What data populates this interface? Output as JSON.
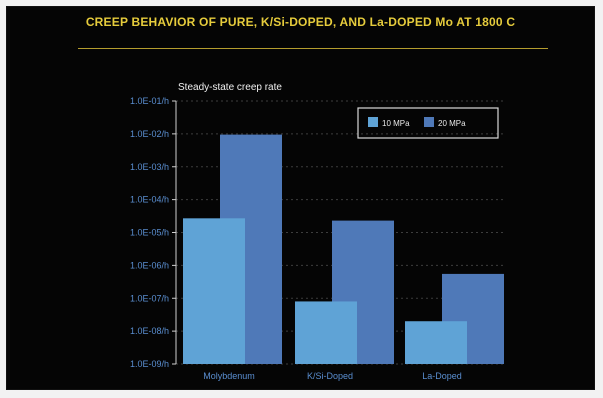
{
  "header": {
    "title": "CREEP BEHAVIOR OF PURE, K/Si-DOPED, AND La-DOPED Mo AT 1800 C"
  },
  "chart_data": {
    "type": "bar",
    "title": "Steady-state creep rate",
    "categories": [
      "Molybdenum",
      "K/Si-Doped",
      "La-Doped"
    ],
    "series": [
      {
        "name": "10 MPa",
        "values": [
          2.7e-05,
          8e-08,
          2e-08
        ],
        "color": "#5fa3d6"
      },
      {
        "name": "20 MPa",
        "values": [
          0.0095,
          2.3e-05,
          5.5e-07
        ],
        "color": "#4f79b8"
      }
    ],
    "yscale": "log",
    "ylim": [
      1e-09,
      0.1
    ],
    "ytick_values": [
      0.1,
      0.01,
      0.001,
      0.0001,
      1e-05,
      1e-06,
      1e-07,
      1e-08,
      1e-09
    ],
    "ytick_labels": [
      "1.0E-01/h",
      "1.0E-02/h",
      "1.0E-03/h",
      "1.0E-04/h",
      "1.0E-05/h",
      "1.0E-06/h",
      "1.0E-07/h",
      "1.0E-08/h",
      "1.0E-09/h"
    ],
    "legend_position": "top-right",
    "grid": true
  }
}
